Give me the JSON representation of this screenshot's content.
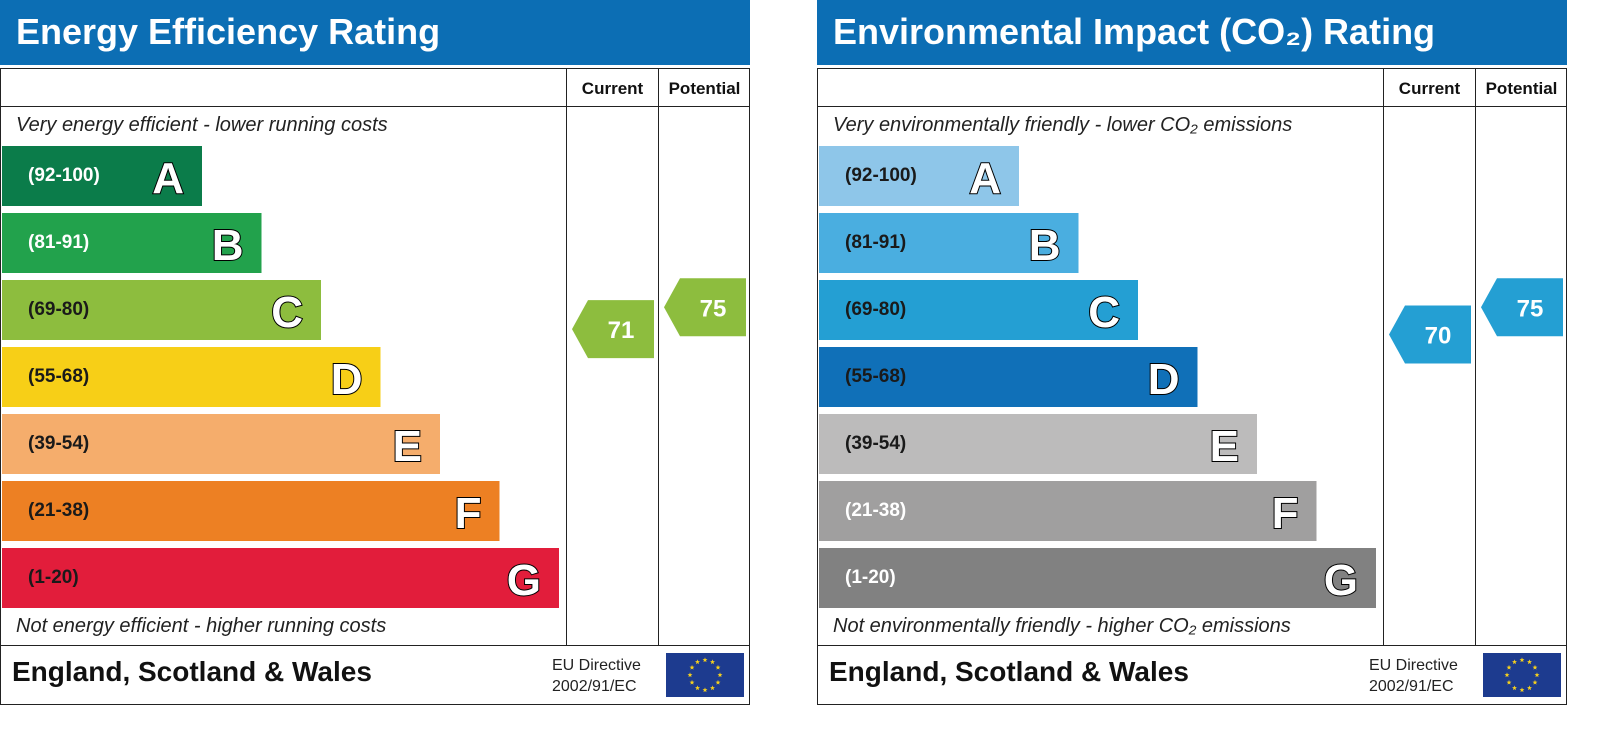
{
  "chart_data": [
    {
      "type": "bar",
      "title": "Energy Efficiency Rating",
      "columns": [
        "Current",
        "Potential"
      ],
      "top_caption": "Very energy efficient - lower running costs",
      "bottom_caption": "Not energy efficient - higher running costs",
      "bands": [
        {
          "range": "(92-100)",
          "letter": "A",
          "color": "#0b7c4a",
          "text_color": "#ffffff"
        },
        {
          "range": "(81-91)",
          "letter": "B",
          "color": "#22a24c",
          "text_color": "#ffffff"
        },
        {
          "range": "(69-80)",
          "letter": "C",
          "color": "#8dbd3e",
          "text_color": "#1a1a1a"
        },
        {
          "range": "(55-68)",
          "letter": "D",
          "color": "#f7cf17",
          "text_color": "#1a1a1a"
        },
        {
          "range": "(39-54)",
          "letter": "E",
          "color": "#f5ad6c",
          "text_color": "#1a1a1a"
        },
        {
          "range": "(21-38)",
          "letter": "F",
          "color": "#ed8023",
          "text_color": "#1a1a1a"
        },
        {
          "range": "(1-20)",
          "letter": "G",
          "color": "#e21d3b",
          "text_color": "#1a1a1a"
        }
      ],
      "current": {
        "value": 71,
        "color": "#8dbd3e"
      },
      "potential": {
        "value": 75,
        "color": "#8dbd3e"
      },
      "footer": {
        "region": "England, Scotland & Wales",
        "directive_line1": "EU Directive",
        "directive_line2": "2002/91/EC"
      }
    },
    {
      "type": "bar",
      "title": "Environmental Impact (CO₂) Rating",
      "columns": [
        "Current",
        "Potential"
      ],
      "top_caption": "Very environmentally friendly - lower CO₂ emissions",
      "bottom_caption": "Not environmentally friendly - higher CO₂ emissions",
      "bands": [
        {
          "range": "(92-100)",
          "letter": "A",
          "color": "#8ec6e9",
          "text_color": "#1a1a1a"
        },
        {
          "range": "(81-91)",
          "letter": "B",
          "color": "#4aaee0",
          "text_color": "#1a1a1a"
        },
        {
          "range": "(69-80)",
          "letter": "C",
          "color": "#249fd3",
          "text_color": "#1a1a1a"
        },
        {
          "range": "(55-68)",
          "letter": "D",
          "color": "#1070b8",
          "text_color": "#1a1a1a"
        },
        {
          "range": "(39-54)",
          "letter": "E",
          "color": "#bcbbbb",
          "text_color": "#1a1a1a"
        },
        {
          "range": "(21-38)",
          "letter": "F",
          "color": "#a09f9f",
          "text_color": "#ffffff"
        },
        {
          "range": "(1-20)",
          "letter": "G",
          "color": "#818181",
          "text_color": "#ffffff"
        }
      ],
      "current": {
        "value": 70,
        "color": "#249fd3"
      },
      "potential": {
        "value": 75,
        "color": "#249fd3"
      },
      "footer": {
        "region": "England, Scotland & Wales",
        "directive_line1": "EU Directive",
        "directive_line2": "2002/91/EC"
      }
    }
  ]
}
